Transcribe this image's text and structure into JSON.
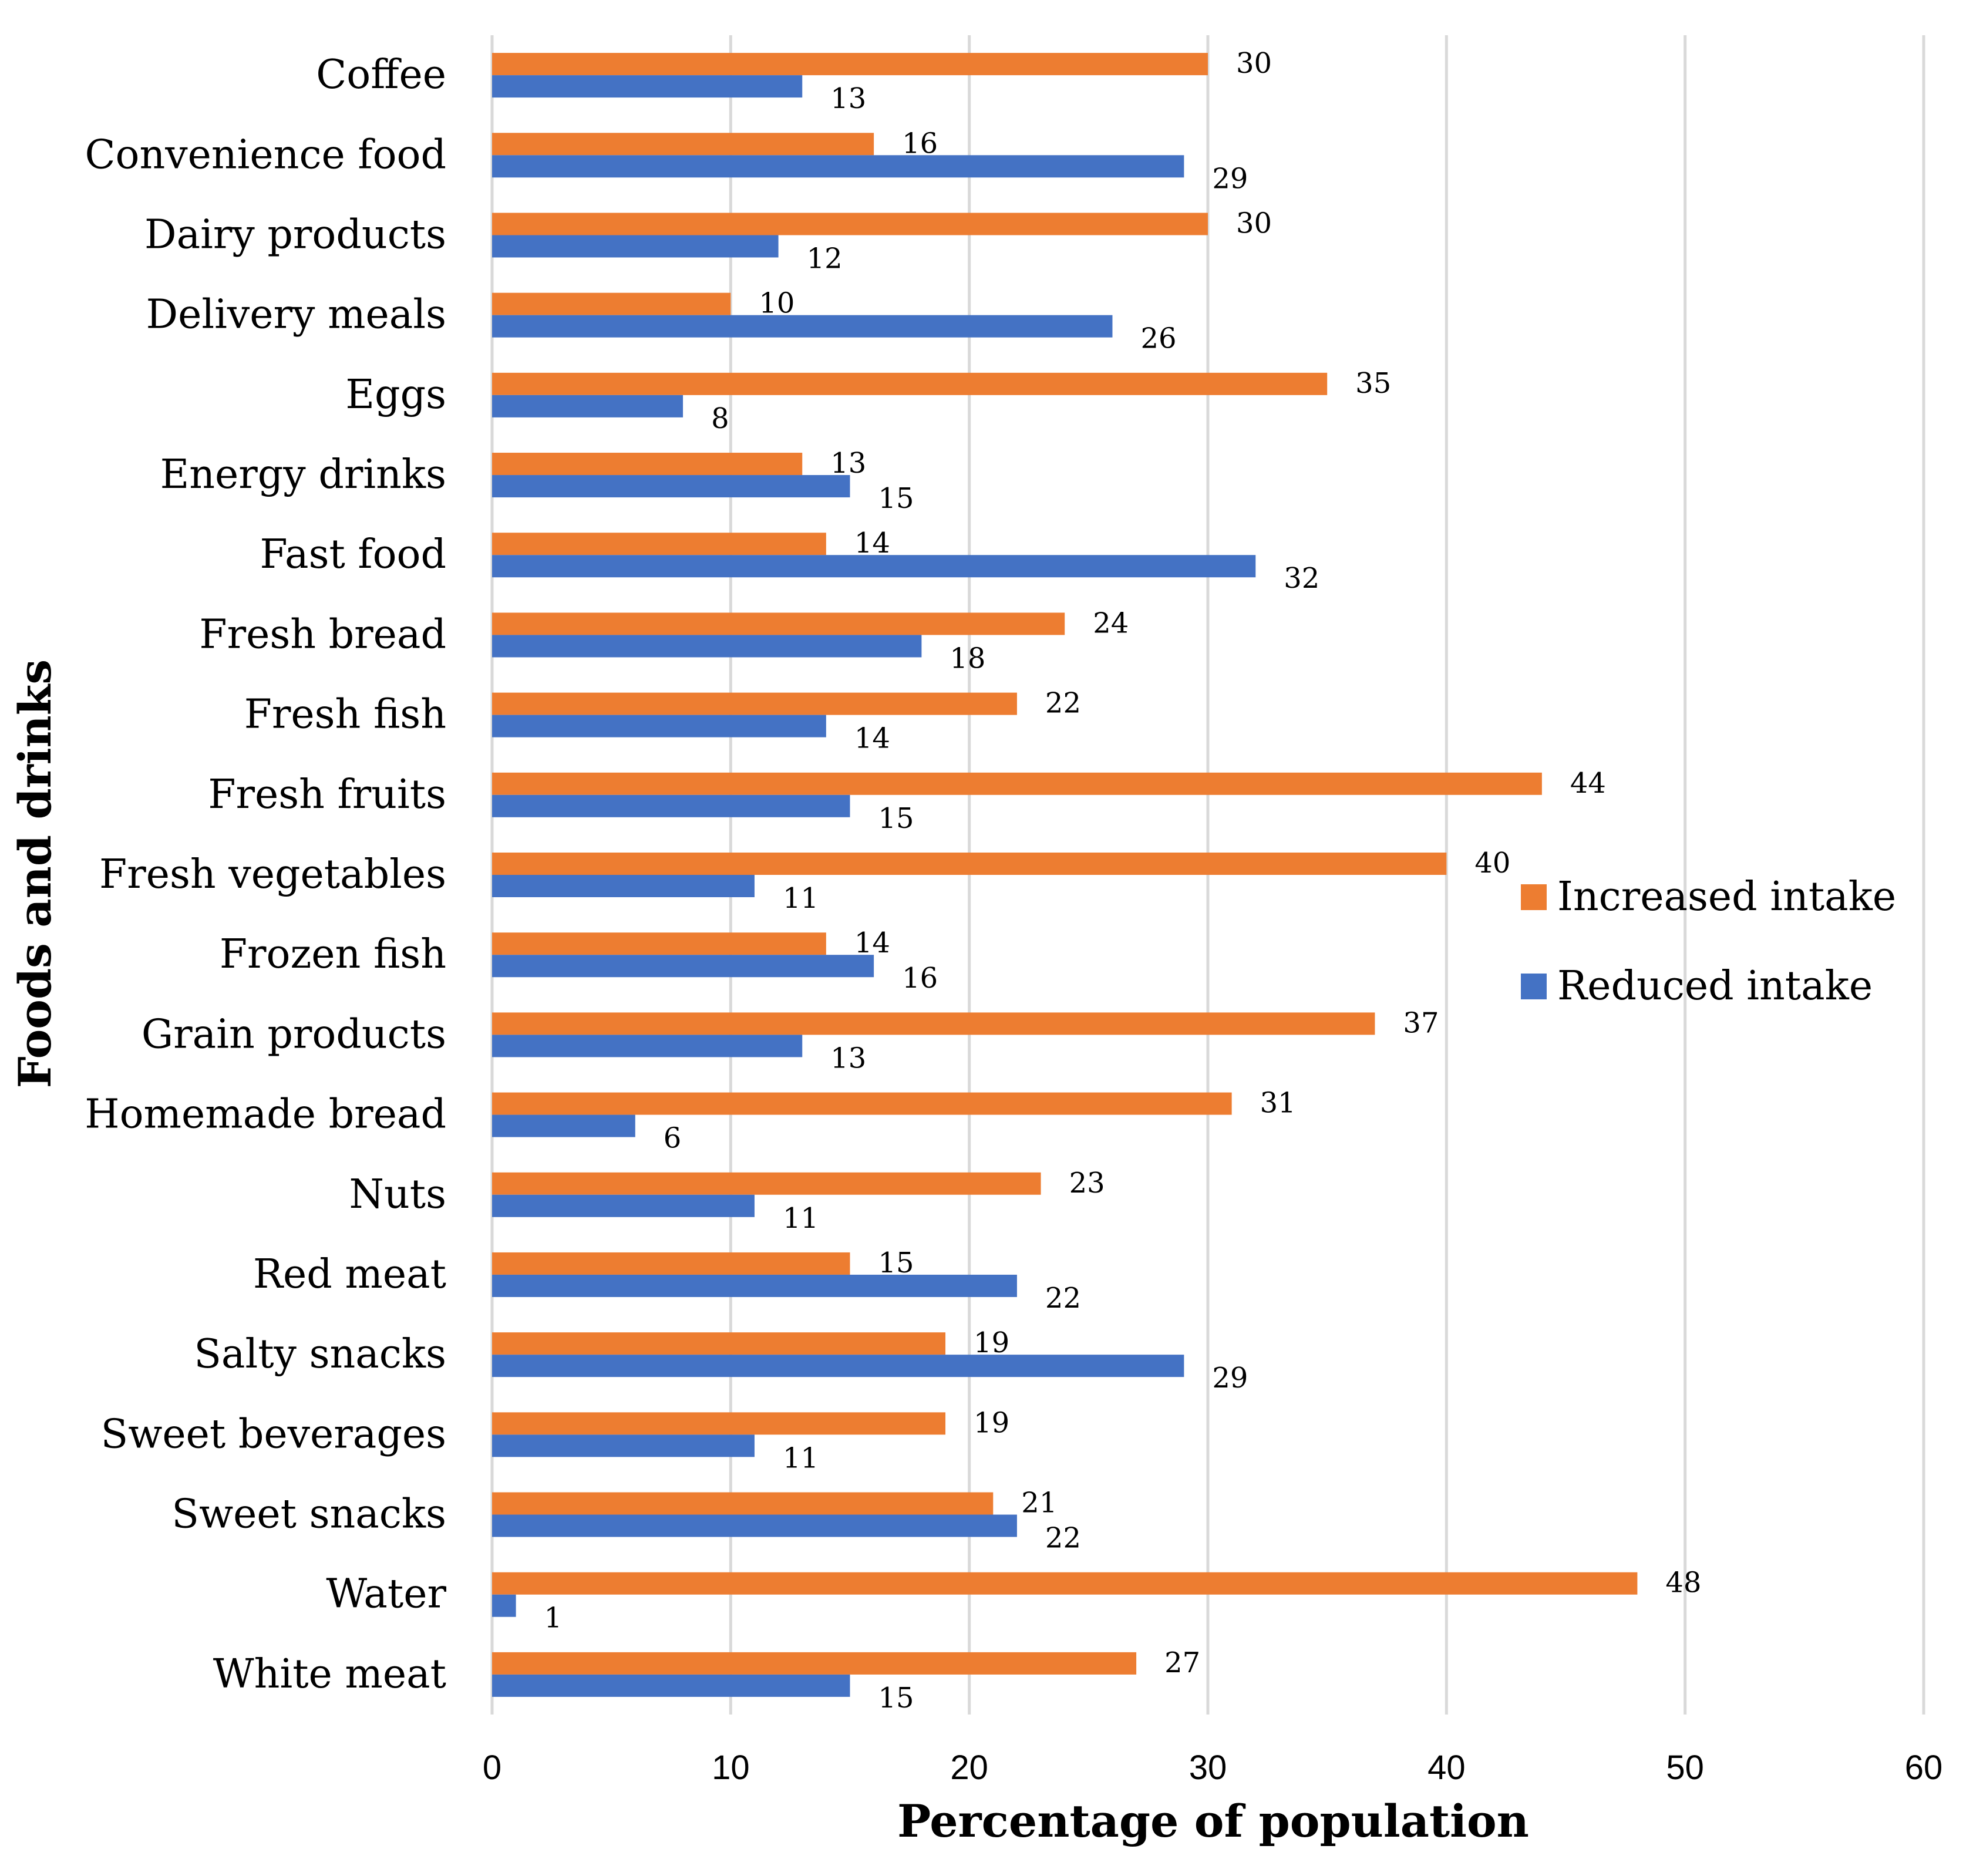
{
  "chart_data": {
    "type": "bar",
    "orientation": "horizontal",
    "title": "",
    "xlabel": "Percentage of population",
    "ylabel": "Foods and drinks",
    "xlim": [
      0,
      60
    ],
    "xticks": [
      0,
      10,
      20,
      30,
      40,
      50,
      60
    ],
    "grid": "vertical",
    "legend_position": "right",
    "categories": [
      "Coffee",
      "Convenience food",
      "Dairy products",
      "Delivery meals",
      "Eggs",
      "Energy  drinks",
      "Fast food",
      "Fresh bread",
      "Fresh fish",
      "Fresh fruits",
      "Fresh vegetables",
      "Frozen fish",
      "Grain products",
      "Homemade bread",
      "Nuts",
      "Red meat",
      "Salty snacks",
      "Sweet beverages",
      "Sweet snacks",
      "Water",
      "White meat"
    ],
    "series": [
      {
        "name": "Increased intake",
        "color": "#ED7D31",
        "values": [
          30,
          16,
          30,
          10,
          35,
          13,
          14,
          24,
          22,
          44,
          40,
          14,
          37,
          31,
          23,
          15,
          19,
          19,
          21,
          48,
          27
        ]
      },
      {
        "name": "Reduced intake",
        "color": "#4472C4",
        "values": [
          13,
          29,
          12,
          26,
          8,
          15,
          32,
          18,
          14,
          15,
          11,
          16,
          13,
          6,
          11,
          22,
          29,
          11,
          22,
          1,
          15
        ]
      }
    ]
  }
}
